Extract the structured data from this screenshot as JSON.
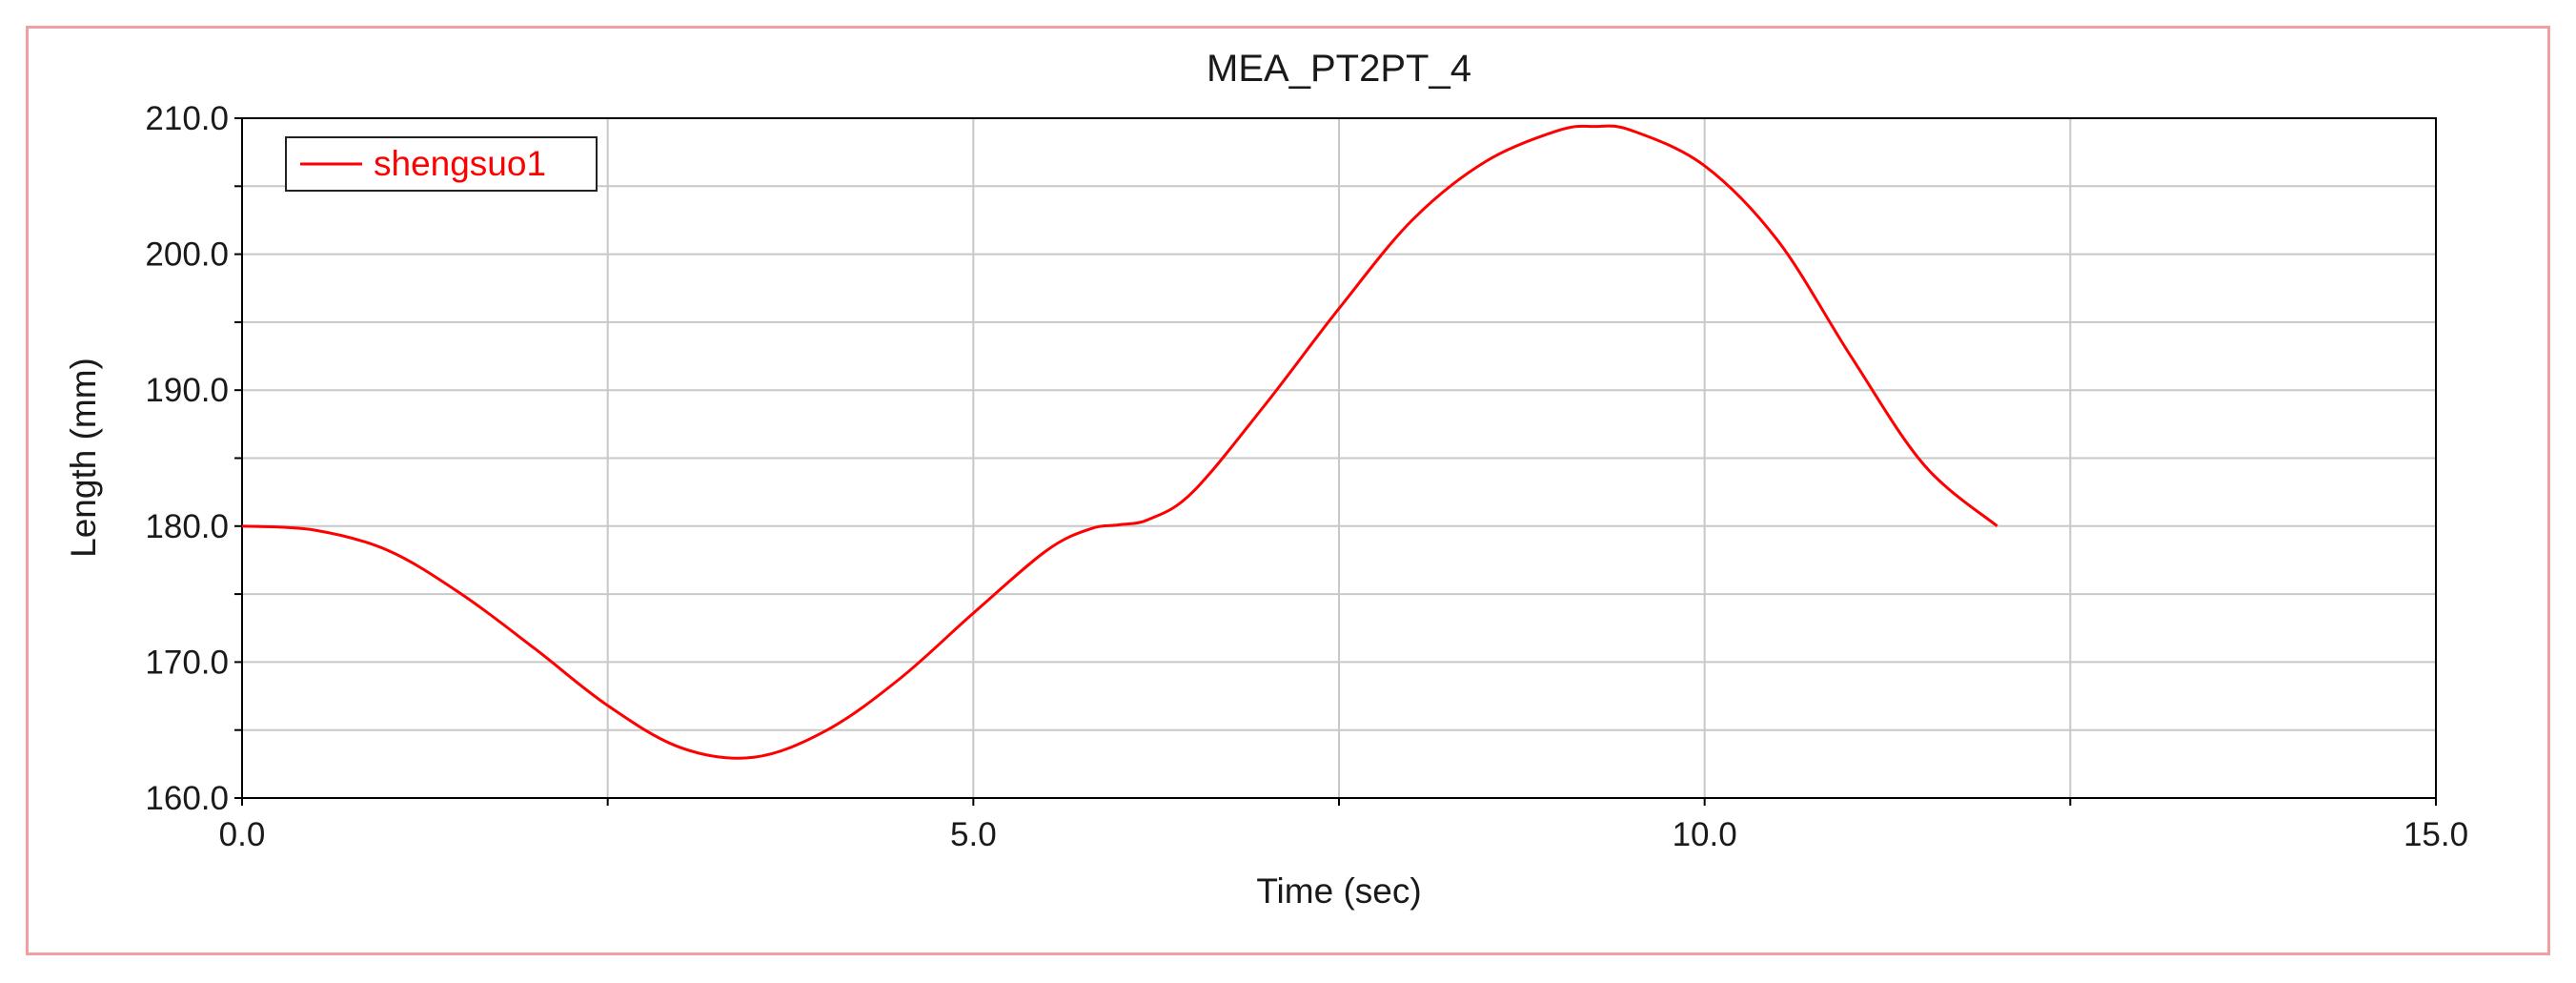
{
  "chart_data": {
    "type": "line",
    "title": "MEA_PT2PT_4",
    "xlabel": "Time (sec)",
    "ylabel": "Length (mm)",
    "xlim": [
      0,
      15
    ],
    "ylim": [
      160,
      210
    ],
    "x_ticks": [
      "0.0",
      "5.0",
      "10.0",
      "15.0"
    ],
    "y_ticks": [
      "160.0",
      "170.0",
      "180.0",
      "190.0",
      "200.0",
      "210.0"
    ],
    "grid": true,
    "legend_position": "top-left",
    "series": [
      {
        "name": "shengsuo1",
        "color": "#ff0000",
        "x": [
          0,
          0.5,
          1.0,
          1.5,
          2.0,
          2.5,
          3.0,
          3.5,
          4.0,
          4.5,
          5.0,
          5.5,
          5.8,
          6.0,
          6.2,
          6.5,
          7.0,
          7.5,
          8.0,
          8.5,
          9.0,
          9.25,
          9.5,
          10.0,
          10.5,
          11.0,
          11.5,
          12.0
        ],
        "y": [
          180.0,
          179.7,
          178.2,
          175.0,
          171.0,
          166.8,
          163.7,
          163.0,
          165.0,
          168.8,
          173.6,
          178.2,
          179.8,
          180.1,
          180.5,
          182.5,
          189.0,
          196.0,
          202.5,
          206.8,
          209.1,
          209.4,
          209.1,
          206.5,
          201.0,
          192.5,
          184.5,
          180.0
        ]
      }
    ]
  }
}
